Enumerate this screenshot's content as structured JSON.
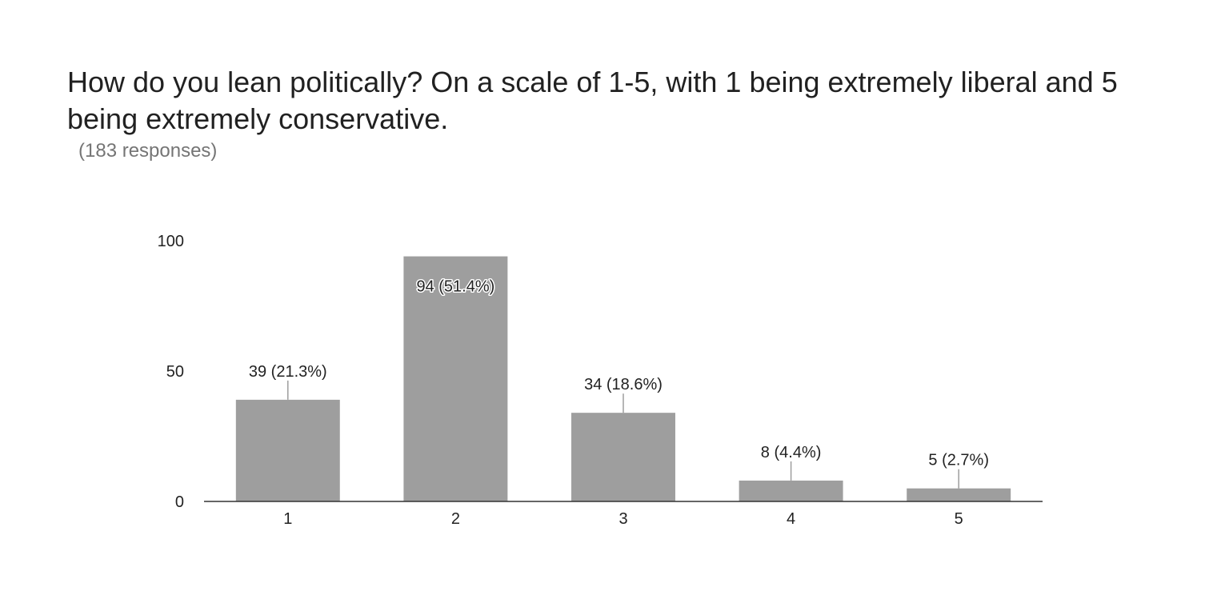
{
  "title": "How do you lean politically? On a scale of 1-5, with 1 being extremely liberal and 5 being extremely conservative.",
  "response_count": "(183 responses)",
  "colors": {
    "bar": "#9e9e9e",
    "axis": "#333333",
    "title": "#212121",
    "subtitle": "#757575"
  },
  "chart_data": {
    "type": "bar",
    "categories": [
      "1",
      "2",
      "3",
      "4",
      "5"
    ],
    "values": [
      39,
      94,
      34,
      8,
      5
    ],
    "data_labels": [
      "39 (21.3%)",
      "94 (51.4%)",
      "34 (18.6%)",
      "8 (4.4%)",
      "5 (2.7%)"
    ],
    "yticks": [
      0,
      50,
      100
    ],
    "ylim": [
      0,
      100
    ],
    "xlabel": "",
    "ylabel": "",
    "grid": false,
    "legend": "none"
  }
}
